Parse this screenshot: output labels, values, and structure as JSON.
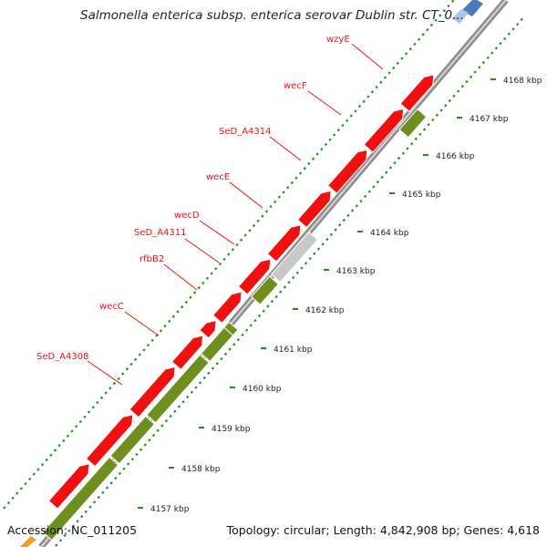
{
  "title": "Salmonella enterica subsp. enterica serovar Dublin str. CT_0...",
  "footer": {
    "accession": "Accession: NC_011205",
    "stats": "Topology: circular; Length: 4,842,908 bp; Genes: 4,618"
  },
  "colors": {
    "forward_gene": "#6e8e1e",
    "reverse_gene": "#f01010",
    "pseudo_gene": "#c8c8c8",
    "label": "#e8141c",
    "tick": "#1e8e1e",
    "backbone": "#8c8c8c"
  },
  "gene_labels": [
    "wzyE",
    "wecF",
    "SeD_A4314",
    "wecE",
    "wecD",
    "SeD_A4311",
    "rfbB2",
    "wecC",
    "SeD_A4308"
  ],
  "scale_labels": [
    "4157 kbp",
    "4158 kbp",
    "4159 kbp",
    "4160 kbp",
    "4161 kbp",
    "4162 kbp",
    "4163 kbp",
    "4164 kbp",
    "4165 kbp",
    "4166 kbp",
    "4167 kbp",
    "4168 kbp"
  ]
}
